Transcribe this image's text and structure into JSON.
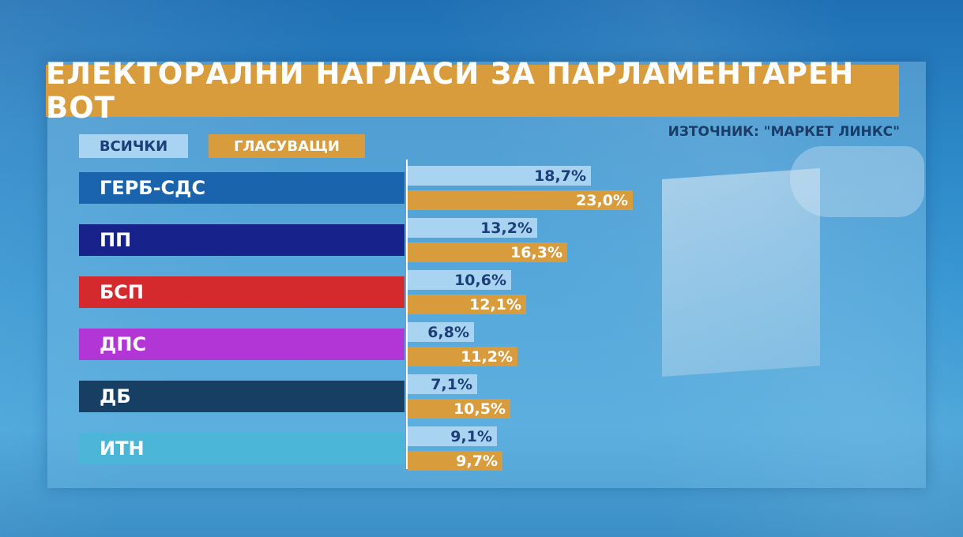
{
  "title": "ЕЛЕКТОРАЛНИ НАГЛАСИ ЗА ПАРЛАМЕНТАРЕН ВОТ",
  "source": "ИЗТОЧНИК: \"МАРКЕТ ЛИНКС\"",
  "legend": {
    "all": "ВСИЧКИ",
    "voters": "ГЛАСУВАЩИ"
  },
  "colors": {
    "all": "#a8d4f2",
    "voters": "#d99c3c",
    "parties": [
      "#1a63ad",
      "#17238a",
      "#d42a2e",
      "#b235d6",
      "#163f63",
      "#4cb6d8"
    ]
  },
  "chart_data": {
    "type": "bar",
    "orientation": "horizontal",
    "title": "ЕЛЕКТОРАЛНИ НАГЛАСИ ЗА ПАРЛАМЕНТАРЕН ВОТ",
    "categories": [
      "ГЕРБ-СДС",
      "ПП",
      "БСП",
      "ДПС",
      "ДБ",
      "ИТН"
    ],
    "series": [
      {
        "name": "ВСИЧКИ",
        "values": [
          18.7,
          13.2,
          10.6,
          6.8,
          7.1,
          9.1
        ],
        "labels": [
          "18,7%",
          "13,2%",
          "10,6%",
          "6,8%",
          "7,1%",
          "9,1%"
        ]
      },
      {
        "name": "ГЛАСУВАЩИ",
        "values": [
          23.0,
          16.3,
          12.1,
          11.2,
          10.5,
          9.7
        ],
        "labels": [
          "23,0%",
          "16,3%",
          "12,1%",
          "11,2%",
          "10,5%",
          "9,7%"
        ]
      }
    ],
    "unit": "%",
    "grid": false,
    "legend_position": "top-left"
  }
}
